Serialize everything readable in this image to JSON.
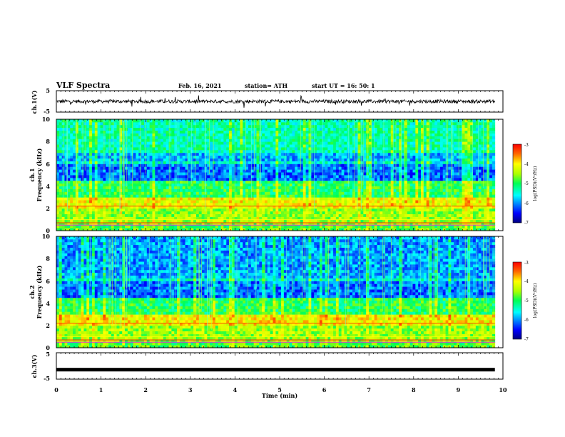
{
  "header": {
    "title": "VLF Spectra",
    "date": "Feb. 16, 2021",
    "station": "station= ATH",
    "start": "start  UT =   16: 50: 1"
  },
  "chart_data": [
    {
      "type": "line",
      "panel": "ch1-waveform",
      "ylabel": "ch.1(V)",
      "ylim": [
        -5,
        5
      ],
      "yticks": [
        "5",
        "-5"
      ],
      "xlim": [
        0,
        10
      ],
      "description_values": {
        "baseline": 0,
        "noise_amplitude": 0.8,
        "max_spike": 3,
        "data_end_min": 9.82
      }
    },
    {
      "type": "heatmap",
      "panel": "ch1-spectrogram",
      "ylabel": "ch.1\nFrequency (kHz)",
      "ylabel_lines": [
        "ch.1",
        "Frequency (kHz)"
      ],
      "ylim": [
        0,
        10
      ],
      "yticks": [
        "0",
        "2",
        "4",
        "6",
        "8",
        "10"
      ],
      "xlim": [
        0,
        10
      ],
      "data_end_min": 9.82,
      "colorbar": {
        "label": "log(PSD)(V²/Hz)",
        "range": [
          -7,
          -3
        ],
        "ticks": [
          "-3",
          "-4",
          "-5",
          "-6",
          "-7"
        ]
      }
    },
    {
      "type": "heatmap",
      "panel": "ch2-spectrogram",
      "ylabel_lines": [
        "ch.2",
        "Frequency (kHz)"
      ],
      "ylim": [
        0,
        10
      ],
      "yticks": [
        "0",
        "2",
        "4",
        "6",
        "8",
        "10"
      ],
      "xlim": [
        0,
        10
      ],
      "data_end_min": 9.82,
      "colorbar": {
        "label": "log(PSD)(V²/Hz)",
        "range": [
          -7,
          -3
        ],
        "ticks": [
          "-3",
          "-4",
          "-5",
          "-6",
          "-7"
        ]
      }
    },
    {
      "type": "line",
      "panel": "ch3-waveform",
      "ylabel": "ch.3(V)",
      "ylim": [
        -5,
        5
      ],
      "yticks": [
        "5",
        "-5"
      ],
      "xlim": [
        0,
        10
      ],
      "xlabel": "Time  (min)",
      "xticks": [
        "0",
        "1",
        "2",
        "3",
        "4",
        "5",
        "6",
        "7",
        "8",
        "9",
        "10"
      ],
      "description_values": {
        "baseline": -1.4,
        "data_end_min": 9.82
      }
    }
  ]
}
